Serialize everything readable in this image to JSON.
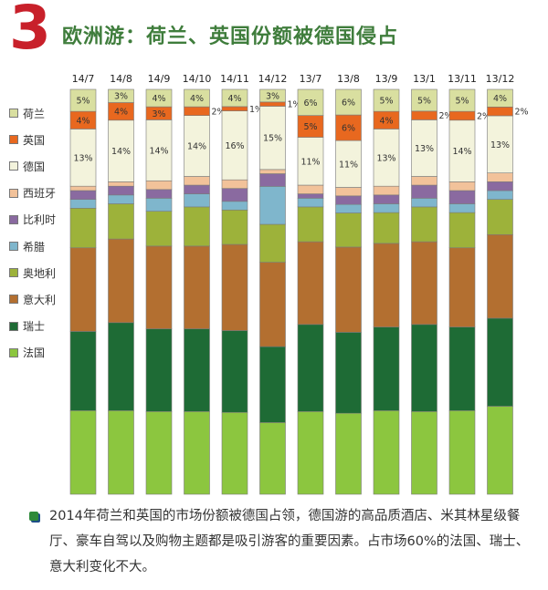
{
  "header": {
    "number": "3",
    "title": "欧洲游：荷兰、英国份额被德国侵占"
  },
  "footer": {
    "text": "2014年荷兰和英国的市场份额被德国占领，德国游的高品质酒店、米其林星级餐厅、豪车自驾以及购物主题都是吸引游客的重要因素。占市场60%的法国、瑞士、意大利变化不大。"
  },
  "chart_data": {
    "type": "bar",
    "stacked": true,
    "normalized": true,
    "categories": [
      "14/7",
      "14/8",
      "14/9",
      "14/10",
      "14/11",
      "14/12",
      "13/7",
      "13/8",
      "13/9",
      "13/1",
      "13/11",
      "13/12"
    ],
    "series": [
      {
        "name": "法国",
        "color": "#8cc63f",
        "values": [
          19,
          19,
          19,
          19,
          19,
          17,
          19,
          19,
          19,
          19,
          19,
          20
        ]
      },
      {
        "name": "瑞士",
        "color": "#1e6b35",
        "values": [
          18,
          20,
          19,
          19,
          19,
          18,
          20,
          19,
          19,
          20,
          19,
          20
        ]
      },
      {
        "name": "意大利",
        "color": "#b36f30",
        "values": [
          19,
          19,
          19,
          19,
          20,
          20,
          19,
          20,
          19,
          19,
          18,
          19
        ]
      },
      {
        "name": "奥地利",
        "color": "#9db23a",
        "values": [
          9,
          8,
          8,
          9,
          8,
          9,
          8,
          8,
          7,
          8,
          8,
          8
        ]
      },
      {
        "name": "希腊",
        "color": "#7fb6cc",
        "values": [
          2,
          2,
          3,
          3,
          2,
          9,
          2,
          2,
          2,
          2,
          2,
          2
        ]
      },
      {
        "name": "比利时",
        "color": "#8a6aa0",
        "values": [
          2,
          2,
          2,
          2,
          3,
          3,
          1,
          2,
          2,
          3,
          3,
          2
        ]
      },
      {
        "name": "西班牙",
        "color": "#f2c29a",
        "values": [
          1,
          1,
          2,
          2,
          2,
          1,
          2,
          2,
          2,
          2,
          2,
          2
        ]
      },
      {
        "name": "德国",
        "color": "#f3f3dc",
        "values": [
          13,
          14,
          14,
          14,
          16,
          15,
          11,
          11,
          13,
          13,
          14,
          13
        ]
      },
      {
        "name": "英国",
        "color": "#e8681f",
        "values": [
          4,
          4,
          3,
          2,
          1,
          1,
          5,
          6,
          4,
          2,
          2,
          2
        ]
      },
      {
        "name": "荷兰",
        "color": "#d9dfa0",
        "values": [
          5,
          3,
          4,
          4,
          4,
          3,
          6,
          6,
          5,
          5,
          5,
          4
        ]
      }
    ],
    "data_labels": {
      "德国": [
        "13%",
        "14%",
        "14%",
        "14%",
        "16%",
        "15%",
        "11%",
        "11%",
        "13%",
        "13%",
        "14%",
        "13%"
      ],
      "英国": [
        "4%",
        "4%",
        "3%",
        "2%",
        "1%",
        "1%",
        "5%",
        "6%",
        "4%",
        "2%",
        "2%",
        "2%"
      ],
      "荷兰": [
        "5%",
        "3%",
        "4%",
        "4%",
        "4%",
        "3%",
        "6%",
        "6%",
        "5%",
        "5%",
        "5%",
        "4%"
      ]
    },
    "legend": {
      "position": "left",
      "order": [
        "荷兰",
        "英国",
        "德国",
        "西班牙",
        "比利时",
        "希腊",
        "奥地利",
        "意大利",
        "瑞士",
        "法国"
      ]
    },
    "grid": false
  }
}
